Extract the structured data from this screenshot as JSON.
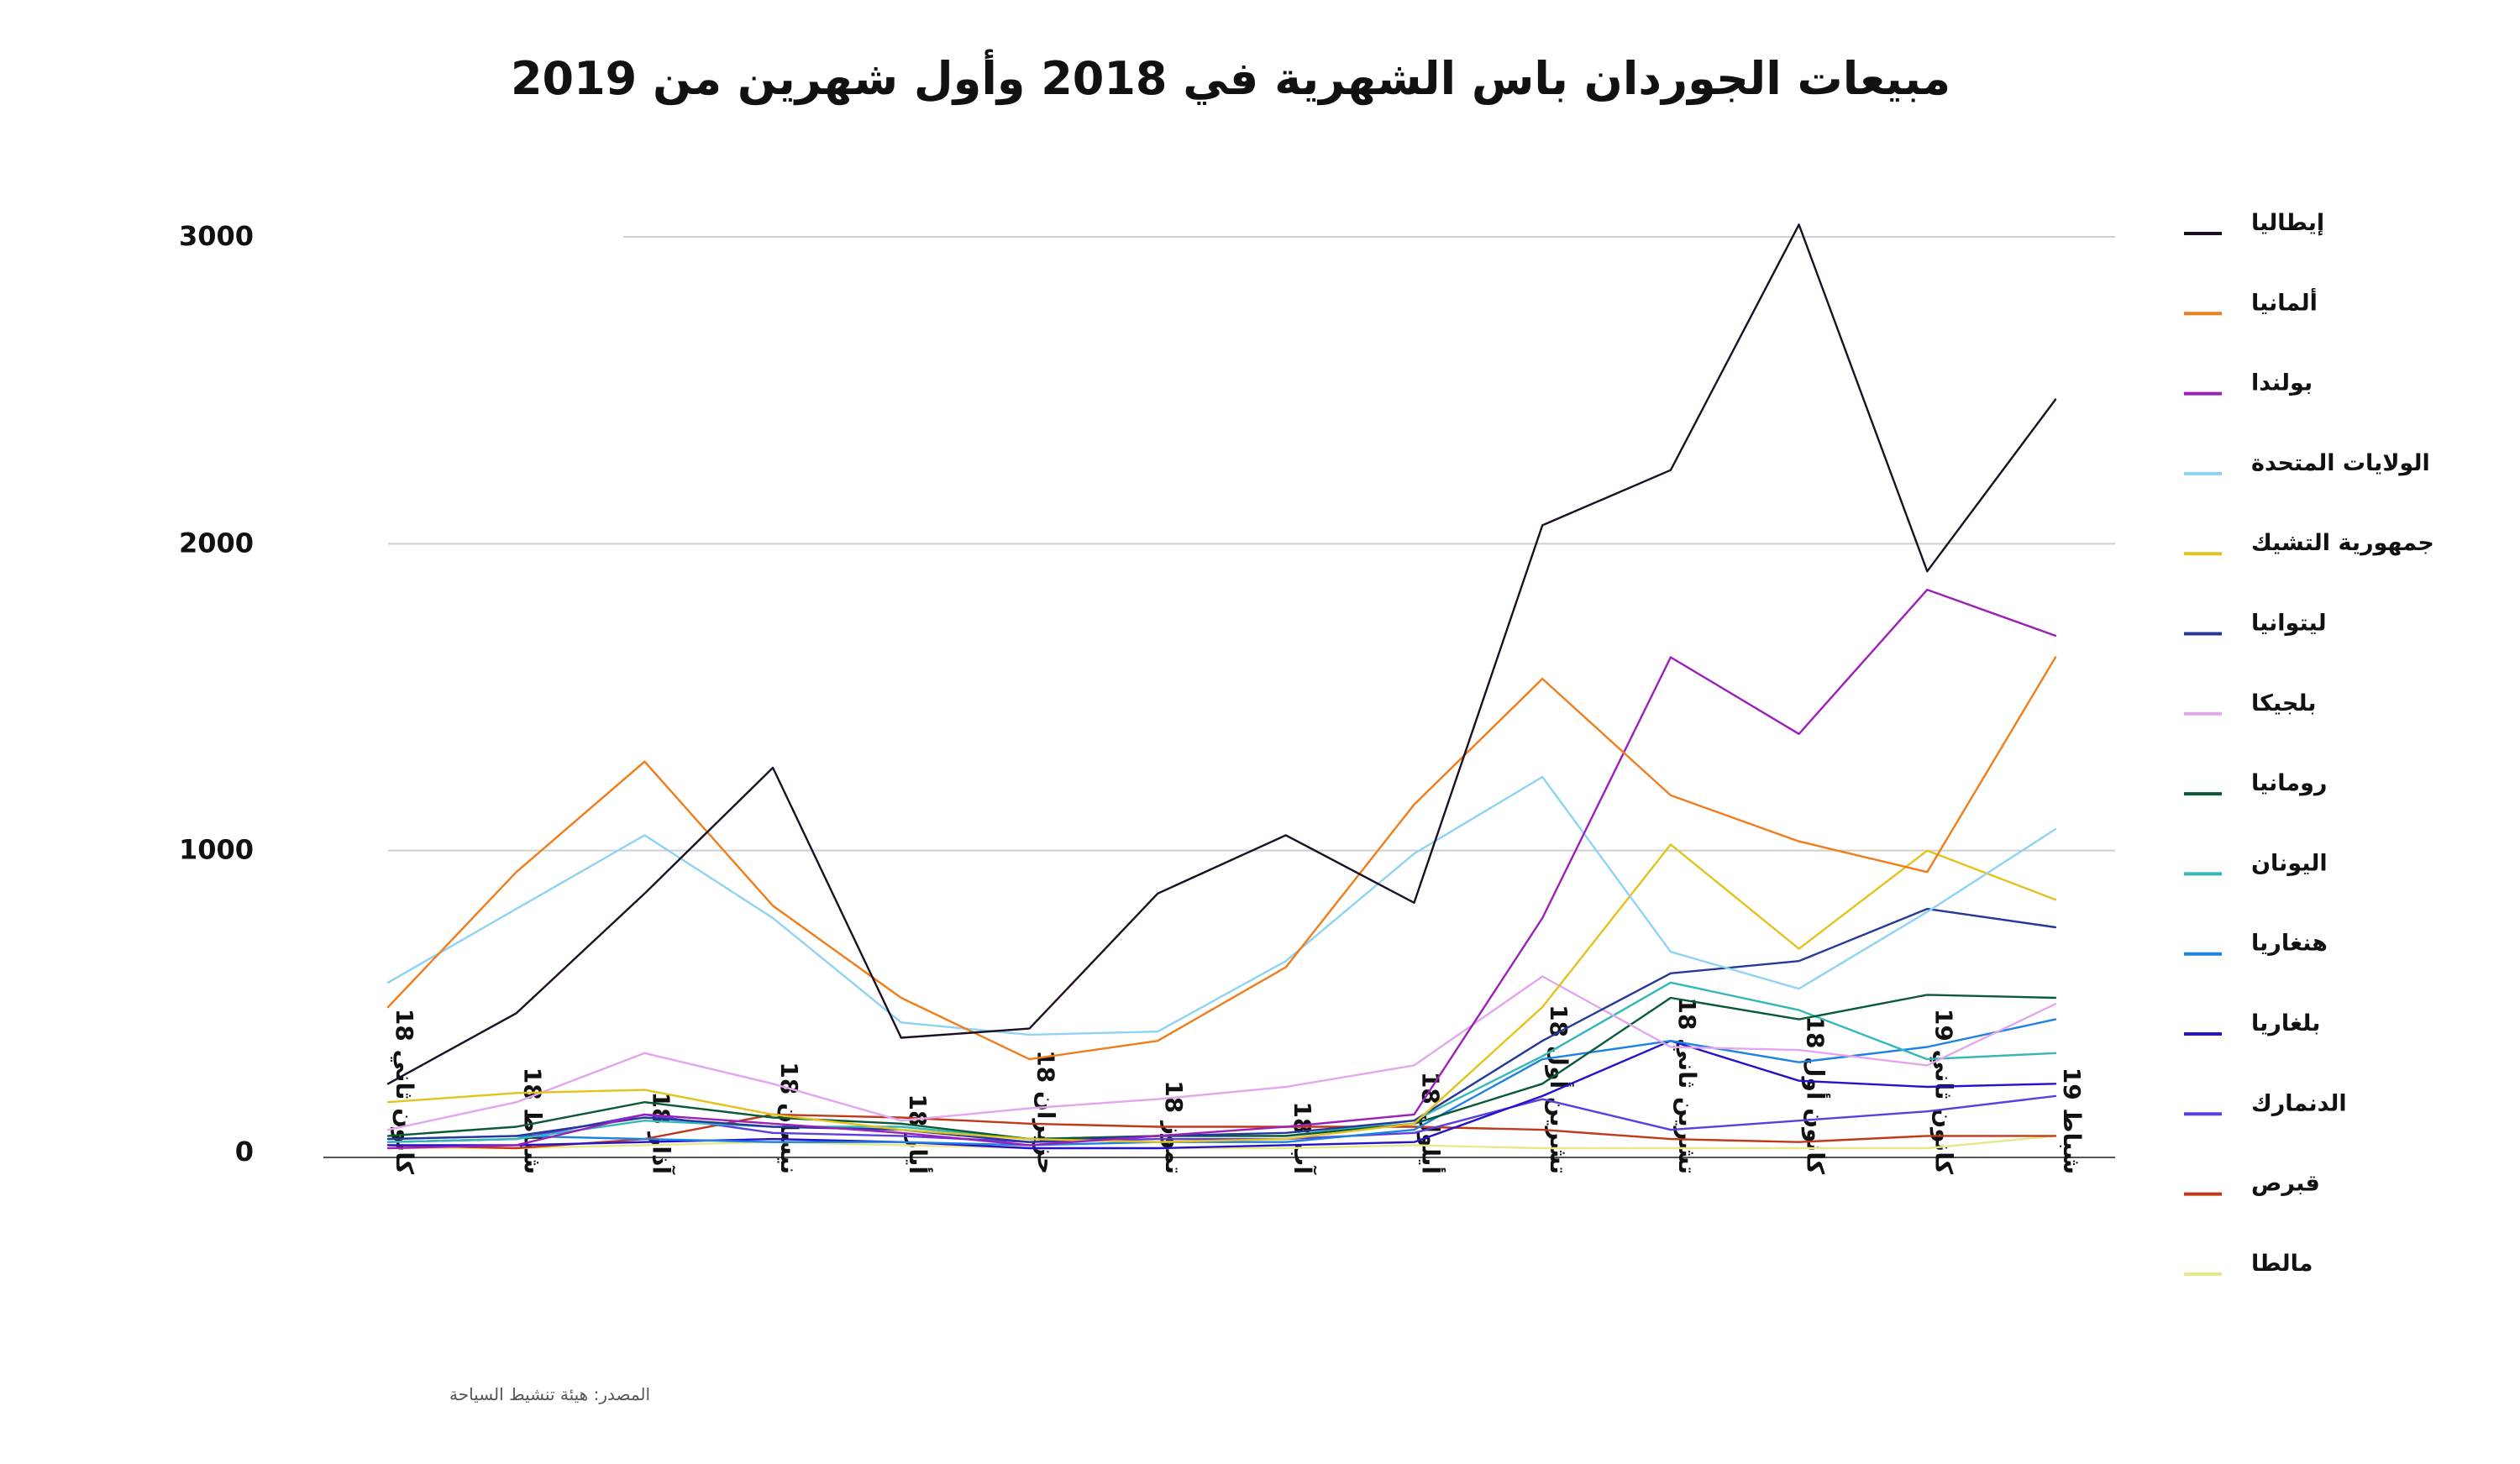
{
  "chart_data": {
    "type": "line",
    "title": "مبيعات الجوردان باس الشهرية في 2018 وأول شهرين من 2019",
    "source": "المصدر: هيئة تنشيط السياحة",
    "categories": [
      "كانون ثاني 18",
      "شباط 18",
      "آذار 18",
      "نيسان 18",
      "أيار 18",
      "حزيران 18",
      "تموز 18",
      "آب 18",
      "أيلول 18",
      "تشرين أول 18",
      "تشرين ثاني 18",
      "كانون أول 18",
      "كانون ثاني 19",
      "شباط 19"
    ],
    "yticks": [
      "0",
      "1000",
      "2000",
      "3000"
    ],
    "ylim": [
      0,
      3000
    ],
    "grid": true,
    "legend_position": "right",
    "series": [
      {
        "name": "إيطاليا",
        "color": "#1c0f24",
        "values": [
          240,
          470,
          860,
          1270,
          390,
          420,
          860,
          1050,
          830,
          2060,
          2240,
          3040,
          1910,
          2470
        ]
      },
      {
        "name": "ألمانيا",
        "color": "#f07d1a",
        "values": [
          490,
          930,
          1290,
          820,
          520,
          320,
          380,
          620,
          1150,
          1560,
          1180,
          1030,
          930,
          1630
        ]
      },
      {
        "name": "بولندا",
        "color": "#9b1fb8",
        "values": [
          30,
          40,
          140,
          110,
          80,
          40,
          70,
          100,
          140,
          780,
          1630,
          1380,
          1850,
          1700
        ]
      },
      {
        "name": "الولايات المتحدة",
        "color": "#8fd3f4",
        "values": [
          570,
          810,
          1050,
          780,
          440,
          400,
          410,
          640,
          990,
          1240,
          670,
          550,
          800,
          1070
        ]
      },
      {
        "name": "جمهورية التشيك",
        "color": "#e3c21d",
        "values": [
          180,
          210,
          220,
          140,
          90,
          60,
          50,
          60,
          110,
          490,
          1020,
          680,
          1000,
          840
        ]
      },
      {
        "name": "ليتوانيا",
        "color": "#26399b",
        "values": [
          60,
          70,
          130,
          100,
          90,
          50,
          70,
          80,
          120,
          380,
          600,
          640,
          810,
          750
        ]
      },
      {
        "name": "بلجيكا",
        "color": "#e3a6ee",
        "values": [
          90,
          180,
          340,
          240,
          120,
          160,
          190,
          230,
          300,
          590,
          360,
          350,
          300,
          500
        ]
      },
      {
        "name": "رومانيا",
        "color": "#0a5a38",
        "values": [
          70,
          100,
          180,
          130,
          110,
          60,
          70,
          70,
          110,
          240,
          520,
          450,
          530,
          520
        ]
      },
      {
        "name": "اليونان",
        "color": "#33b7b9",
        "values": [
          50,
          60,
          120,
          100,
          100,
          60,
          70,
          70,
          120,
          330,
          570,
          480,
          320,
          340
        ]
      },
      {
        "name": "هنغاريا",
        "color": "#1c82e3",
        "values": [
          60,
          70,
          60,
          50,
          50,
          40,
          50,
          50,
          90,
          320,
          380,
          310,
          360,
          450
        ]
      },
      {
        "name": "بلغاريا",
        "color": "#2612cc",
        "values": [
          40,
          40,
          50,
          60,
          50,
          30,
          30,
          40,
          50,
          200,
          380,
          250,
          230,
          240
        ]
      },
      {
        "name": "الدنمارك",
        "color": "#5a3ee0",
        "values": [
          50,
          60,
          140,
          80,
          70,
          50,
          60,
          60,
          80,
          190,
          90,
          120,
          150,
          200
        ]
      },
      {
        "name": "قبرص",
        "color": "#c0391b",
        "values": [
          40,
          30,
          60,
          140,
          130,
          110,
          100,
          100,
          100,
          90,
          60,
          50,
          70,
          70
        ]
      },
      {
        "name": "مالطا",
        "color": "#e8e88a",
        "values": [
          30,
          30,
          40,
          50,
          40,
          30,
          30,
          30,
          40,
          30,
          30,
          30,
          30,
          70
        ]
      }
    ]
  }
}
